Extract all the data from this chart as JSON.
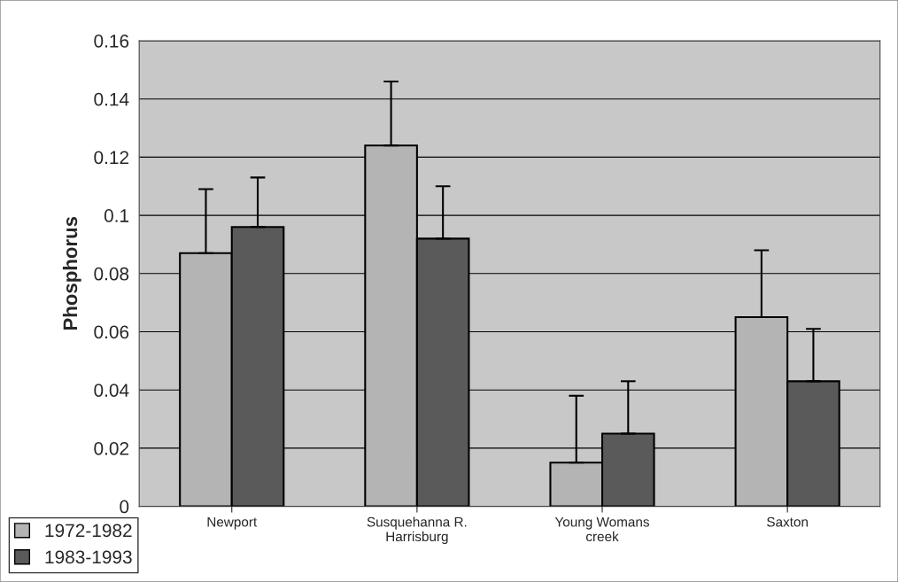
{
  "chart_data": {
    "type": "bar",
    "ylabel": "Phosphorus",
    "categories": [
      "Newport",
      "Susquehanna R.\nHarrisburg",
      "Young Womans\ncreek",
      "Saxton"
    ],
    "series": [
      {
        "name": "1972-1982",
        "color": "#b4b4b4",
        "values": [
          0.087,
          0.124,
          0.015,
          0.065
        ],
        "errors": [
          [
            0.087,
            0.109
          ],
          [
            0.124,
            0.146
          ],
          [
            0.015,
            0.038
          ],
          [
            0.065,
            0.088
          ]
        ]
      },
      {
        "name": "1983-1993",
        "color": "#5a5a5a",
        "values": [
          0.096,
          0.092,
          0.025,
          0.043
        ],
        "errors": [
          [
            0.096,
            0.113
          ],
          [
            0.092,
            0.11
          ],
          [
            0.025,
            0.043
          ],
          [
            0.043,
            0.061
          ]
        ]
      }
    ],
    "ylim": [
      0,
      0.16
    ],
    "yticks": [
      {
        "value": 0,
        "label": "0"
      },
      0.02,
      0.04,
      0.06,
      0.08,
      {
        "value": 0.1,
        "label": "0.1"
      },
      0.12,
      0.14,
      0.16
    ],
    "grid": "y",
    "legend": "bottom left"
  }
}
